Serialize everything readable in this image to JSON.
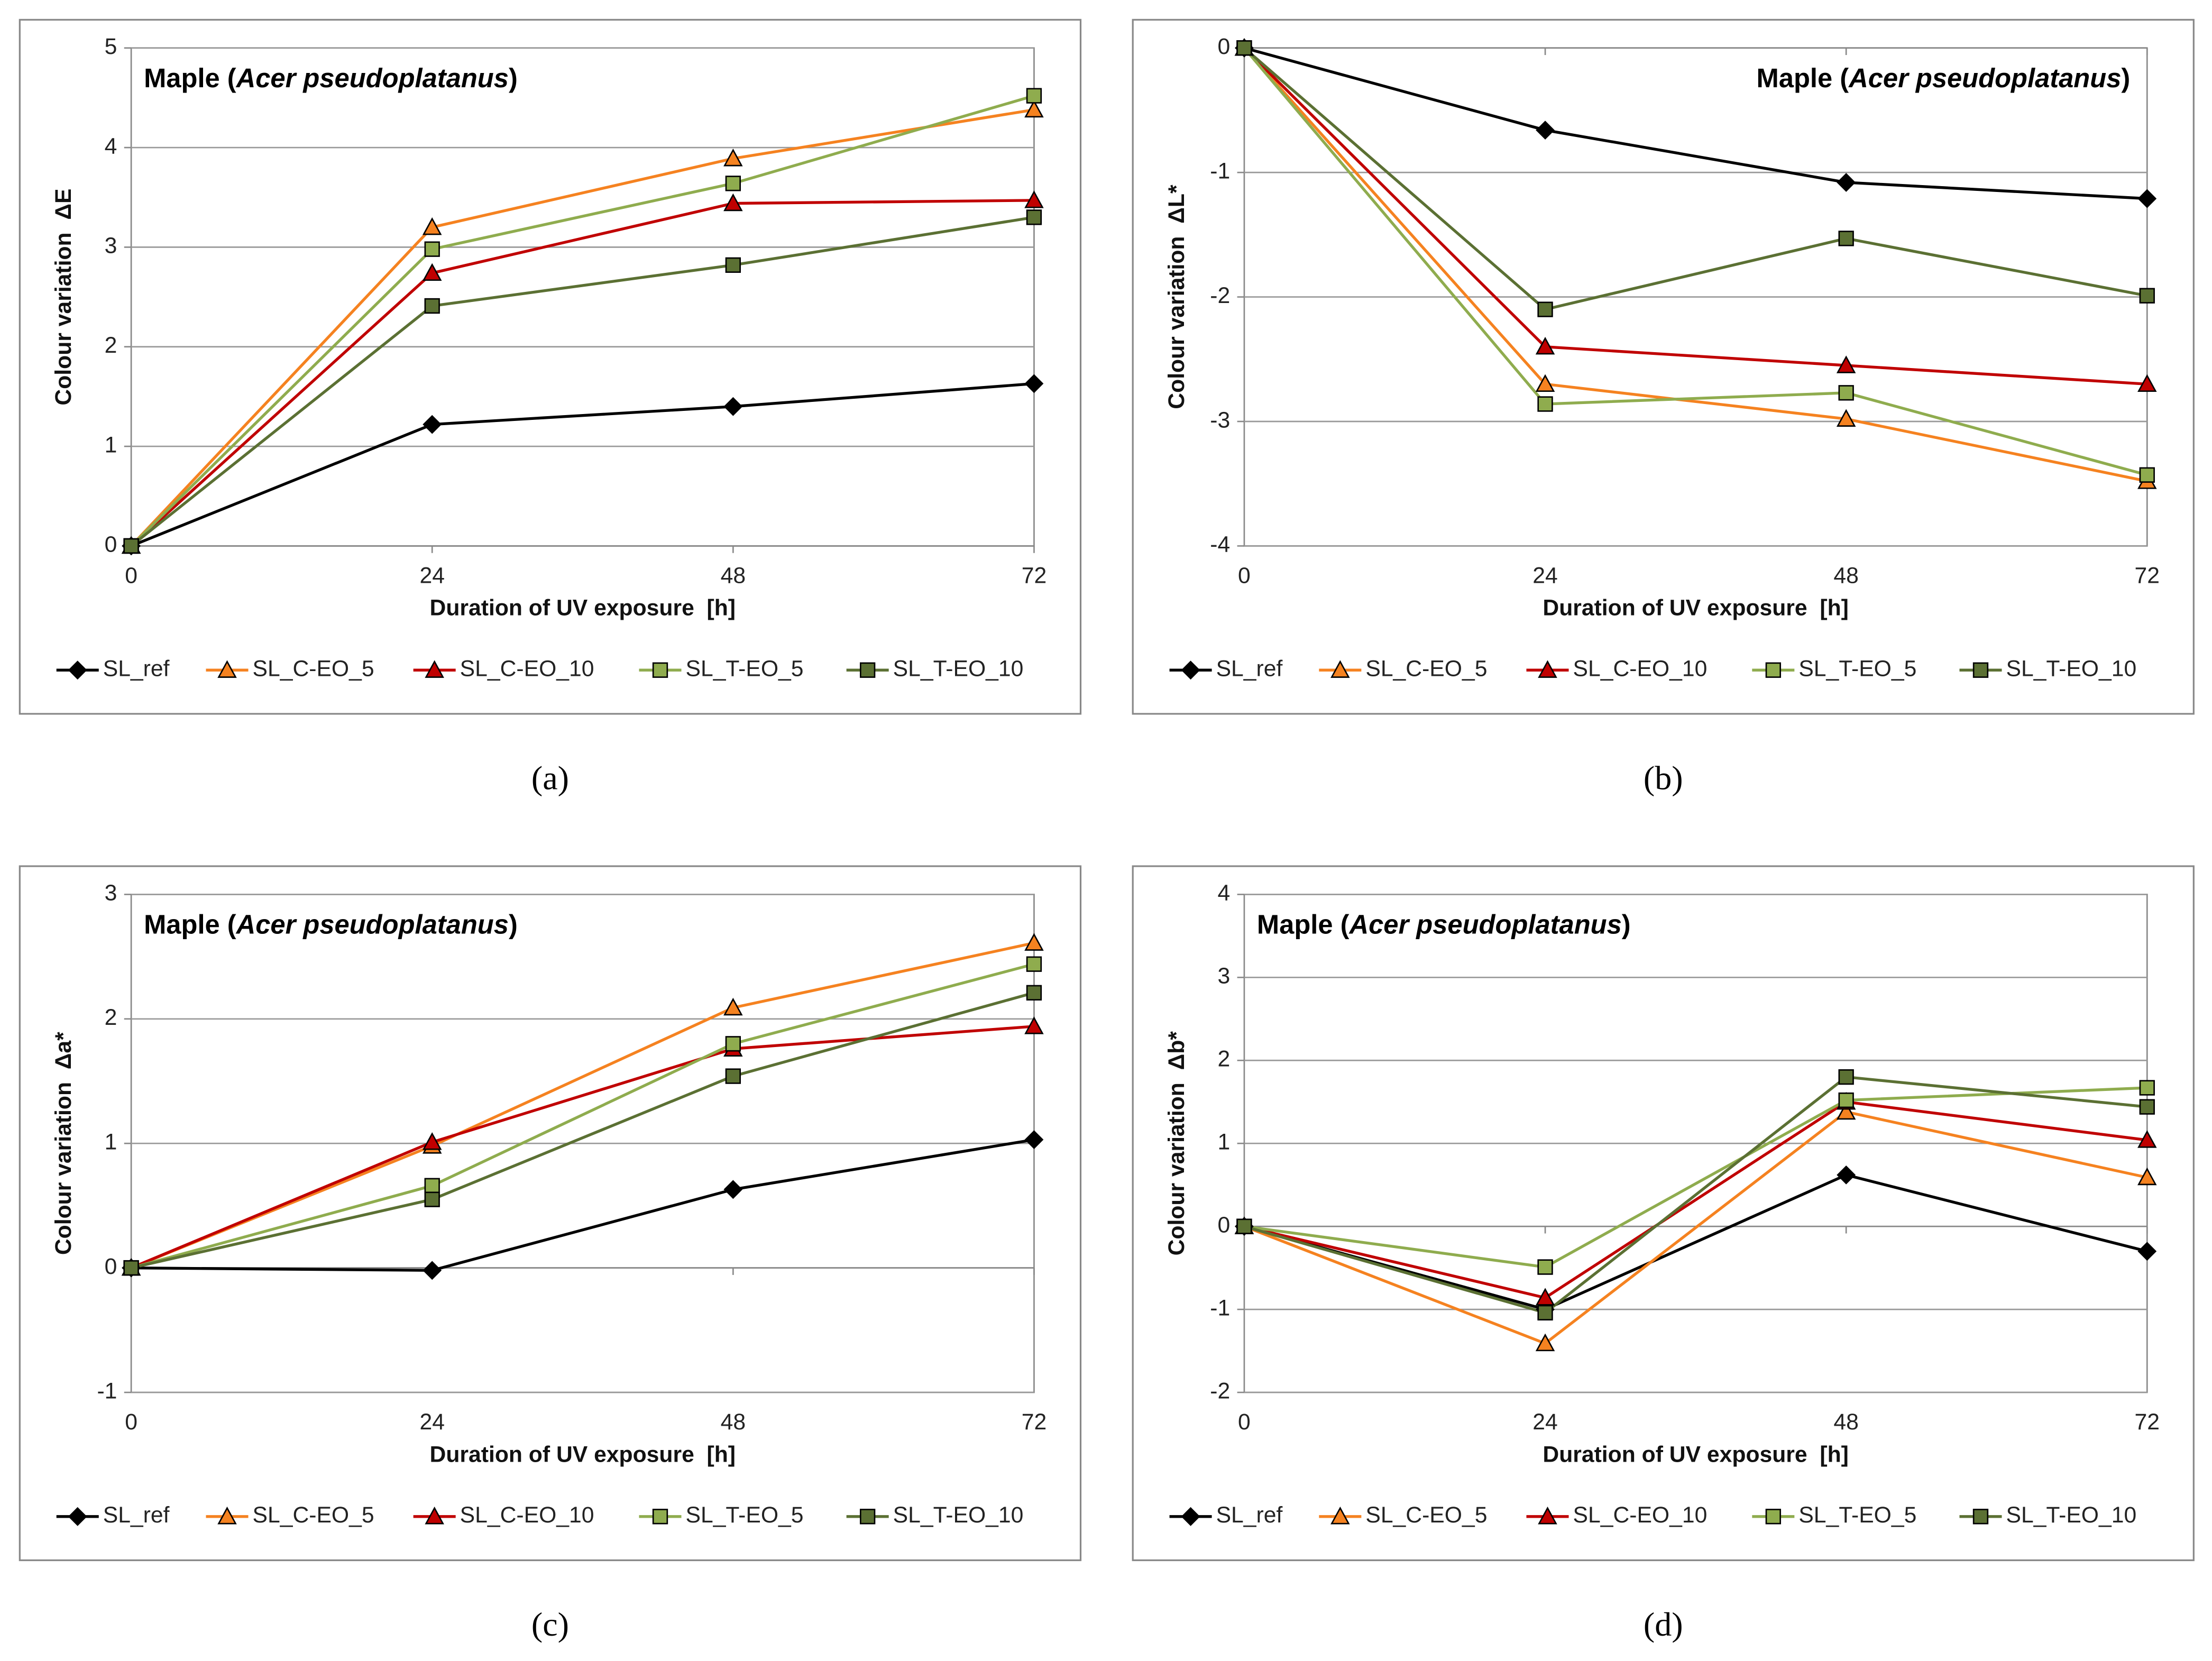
{
  "chart_data": [
    {
      "type": "line",
      "caption": "(a)",
      "title": [
        "Maple (",
        "Acer pseudoplatanus",
        ")"
      ],
      "title_corner": "top-left",
      "xlabel": "Duration of UV exposure  [h]",
      "ylabel": "Colour variation  ΔE",
      "x": [
        0,
        24,
        48,
        72
      ],
      "xlim": [
        0,
        72
      ],
      "xticks": [
        0,
        24,
        48,
        72
      ],
      "ylim": [
        0,
        5
      ],
      "yticks": [
        0,
        1,
        2,
        3,
        4,
        5
      ],
      "grid": true,
      "series": [
        {
          "name": "SL_ref",
          "color": "#000000",
          "marker": "diamond",
          "values": [
            0,
            1.22,
            1.4,
            1.63
          ]
        },
        {
          "name": "SL_C-EO_5",
          "color": "#f58220",
          "marker": "triangle",
          "values": [
            0,
            3.2,
            3.89,
            4.38
          ]
        },
        {
          "name": "SL_C-EO_10",
          "color": "#c00000",
          "marker": "triangle",
          "values": [
            0,
            2.74,
            3.44,
            3.47
          ]
        },
        {
          "name": "SL_T-EO_5",
          "color": "#8fac4e",
          "marker": "square",
          "values": [
            0,
            2.98,
            3.64,
            4.52
          ]
        },
        {
          "name": "SL_T-EO_10",
          "color": "#5b7033",
          "marker": "square",
          "values": [
            0,
            2.41,
            2.82,
            3.3
          ]
        }
      ]
    },
    {
      "type": "line",
      "caption": "(b)",
      "title": [
        "Maple (",
        "Acer pseudoplatanus",
        ")"
      ],
      "title_corner": "top-right",
      "xlabel": "Duration of UV exposure  [h]",
      "ylabel": "Colour variation  ΔL*",
      "x": [
        0,
        24,
        48,
        72
      ],
      "xlim": [
        0,
        72
      ],
      "xticks": [
        0,
        24,
        48,
        72
      ],
      "ylim": [
        -4,
        0
      ],
      "yticks": [
        -4,
        -3,
        -2,
        -1,
        0
      ],
      "grid": true,
      "series": [
        {
          "name": "SL_ref",
          "color": "#000000",
          "marker": "diamond",
          "values": [
            0,
            -0.66,
            -1.08,
            -1.21
          ]
        },
        {
          "name": "SL_C-EO_5",
          "color": "#f58220",
          "marker": "triangle",
          "values": [
            0,
            -2.7,
            -2.98,
            -3.48
          ]
        },
        {
          "name": "SL_C-EO_10",
          "color": "#c00000",
          "marker": "triangle",
          "values": [
            0,
            -2.4,
            -2.55,
            -2.7
          ]
        },
        {
          "name": "SL_T-EO_5",
          "color": "#8fac4e",
          "marker": "square",
          "values": [
            0,
            -2.86,
            -2.77,
            -3.43
          ]
        },
        {
          "name": "SL_T-EO_10",
          "color": "#5b7033",
          "marker": "square",
          "values": [
            0,
            -2.1,
            -1.53,
            -1.99
          ]
        }
      ]
    },
    {
      "type": "line",
      "caption": "(c)",
      "title": [
        "Maple (",
        "Acer pseudoplatanus",
        ")"
      ],
      "title_corner": "top-left",
      "xlabel": "Duration of UV exposure  [h]",
      "ylabel": "Colour variation  Δa*",
      "x": [
        0,
        24,
        48,
        72
      ],
      "xlim": [
        0,
        72
      ],
      "xticks": [
        0,
        24,
        48,
        72
      ],
      "ylim": [
        -1,
        3
      ],
      "yticks": [
        -1,
        0,
        1,
        2,
        3
      ],
      "grid": true,
      "series": [
        {
          "name": "SL_ref",
          "color": "#000000",
          "marker": "diamond",
          "values": [
            0,
            -0.02,
            0.63,
            1.03
          ]
        },
        {
          "name": "SL_C-EO_5",
          "color": "#f58220",
          "marker": "triangle",
          "values": [
            0,
            0.98,
            2.09,
            2.61
          ]
        },
        {
          "name": "SL_C-EO_10",
          "color": "#c00000",
          "marker": "triangle",
          "values": [
            0,
            1.01,
            1.76,
            1.94
          ]
        },
        {
          "name": "SL_T-EO_5",
          "color": "#8fac4e",
          "marker": "square",
          "values": [
            0,
            0.66,
            1.8,
            2.44
          ]
        },
        {
          "name": "SL_T-EO_10",
          "color": "#5b7033",
          "marker": "square",
          "values": [
            0,
            0.55,
            1.54,
            2.21
          ]
        }
      ]
    },
    {
      "type": "line",
      "caption": "(d)",
      "title": [
        "Maple (",
        "Acer pseudoplatanus",
        ")"
      ],
      "title_corner": "top-left",
      "xlabel": "Duration of UV exposure  [h]",
      "ylabel": "Colour variation  Δb*",
      "x": [
        0,
        24,
        48,
        72
      ],
      "xlim": [
        0,
        72
      ],
      "xticks": [
        0,
        24,
        48,
        72
      ],
      "ylim": [
        -2,
        4
      ],
      "yticks": [
        -2,
        -1,
        0,
        1,
        2,
        3,
        4
      ],
      "grid": true,
      "series": [
        {
          "name": "SL_ref",
          "color": "#000000",
          "marker": "diamond",
          "values": [
            0,
            -1.0,
            0.62,
            -0.3
          ]
        },
        {
          "name": "SL_C-EO_5",
          "color": "#f58220",
          "marker": "triangle",
          "values": [
            0,
            -1.41,
            1.38,
            0.59
          ]
        },
        {
          "name": "SL_C-EO_10",
          "color": "#c00000",
          "marker": "triangle",
          "values": [
            0,
            -0.86,
            1.5,
            1.04
          ]
        },
        {
          "name": "SL_T-EO_5",
          "color": "#8fac4e",
          "marker": "square",
          "values": [
            0,
            -0.49,
            1.52,
            1.67
          ]
        },
        {
          "name": "SL_T-EO_10",
          "color": "#5b7033",
          "marker": "square",
          "values": [
            0,
            -1.04,
            1.8,
            1.44
          ]
        }
      ]
    }
  ]
}
